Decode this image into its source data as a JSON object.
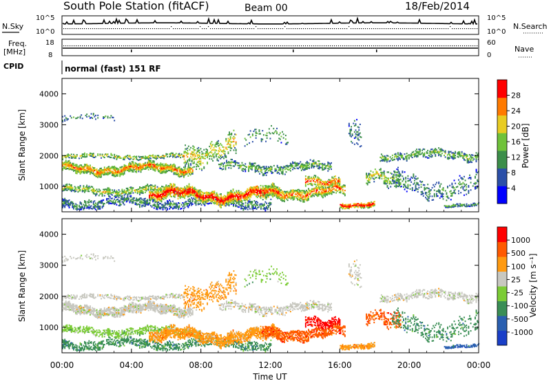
{
  "header": {
    "station": "South Pole Station (fitACF)",
    "beam": "Beam 00",
    "date": "18/Feb/2014"
  },
  "strips": {
    "nsky_label": "N.Sky",
    "nsky_ticks": [
      "10^5",
      "10^0"
    ],
    "nsearch_label": "N.Search",
    "nsearch_ticks": [
      "10^5",
      "10^0"
    ],
    "freq_label": "Freq.",
    "freq_unit": "[MHz]",
    "freq_ticks": [
      "18",
      "8"
    ],
    "nave_label": "Nave",
    "nave_ticks": [
      "60",
      "0"
    ],
    "cpid_label": "CPID",
    "cpid_text": "normal (fast) 151 RF"
  },
  "chart_data": [
    {
      "type": "heatmap",
      "name": "power",
      "ylabel": "Slant Range [km]",
      "xlabel": "",
      "ylim": [
        180,
        4500
      ],
      "xlim": [
        0,
        24
      ],
      "y_ticks": [
        1000,
        2000,
        3000,
        4000
      ],
      "colorbar": {
        "label": "Power [dB]",
        "ticks": [
          "28",
          "24",
          "20",
          "16",
          "12",
          "8",
          "4"
        ],
        "colors": [
          "#0000ff",
          "#2b4fa8",
          "#3c8e4a",
          "#6fc23a",
          "#e8cc22",
          "#ff7a00",
          "#ff0000"
        ]
      }
    },
    {
      "type": "heatmap",
      "name": "velocity",
      "ylabel": "Slant Range [km]",
      "xlabel": "Time UT",
      "ylim": [
        180,
        4500
      ],
      "xlim": [
        0,
        24
      ],
      "y_ticks": [
        1000,
        2000,
        3000,
        4000
      ],
      "x_ticks": [
        "00:00",
        "04:00",
        "08:00",
        "12:00",
        "16:00",
        "20:00",
        "00:00"
      ],
      "colorbar": {
        "label": "Velocity [m s⁻¹]",
        "ticks": [
          "1000",
          "500",
          "100",
          "25",
          "-25",
          "-100",
          "-500",
          "-1000"
        ],
        "colors": [
          "#ff0000",
          "#ff5a00",
          "#ff9a10",
          "#c8c8c0",
          "#7bcc35",
          "#3a8e55",
          "#2a5fb0",
          "#1a3fc8"
        ]
      }
    }
  ]
}
